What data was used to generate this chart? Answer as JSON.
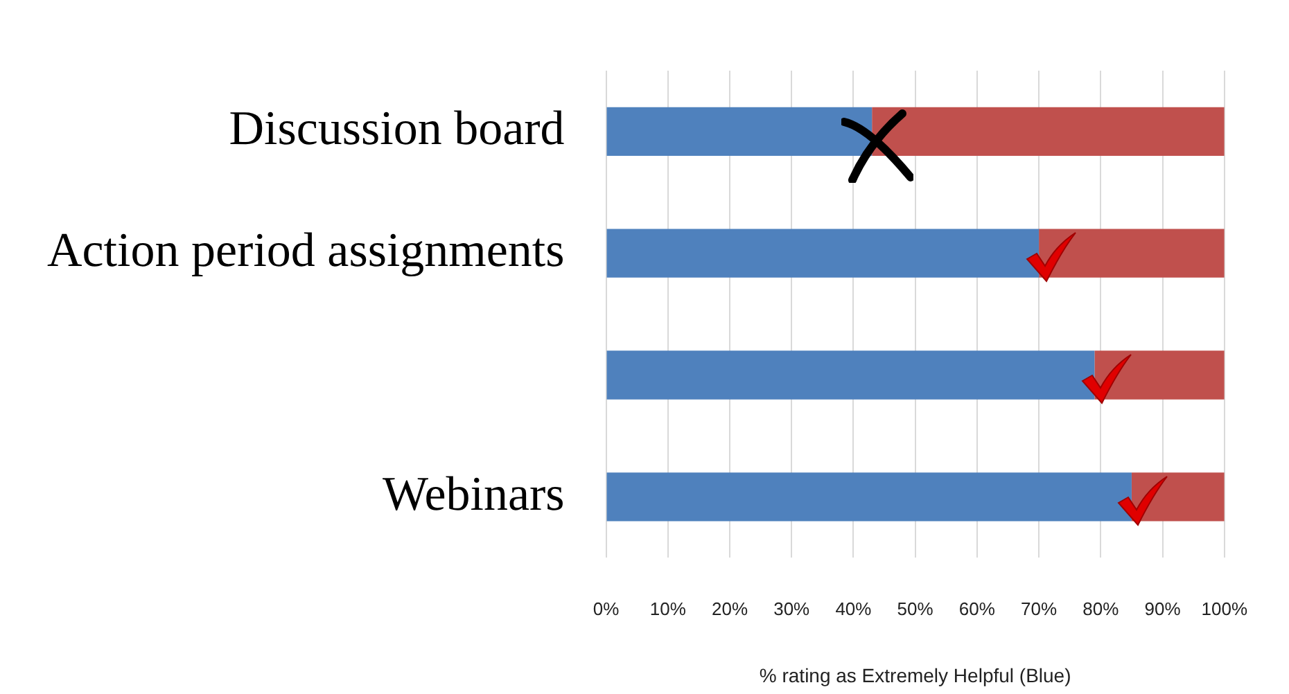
{
  "chart_data": {
    "type": "bar",
    "orientation": "horizontal",
    "stacked": true,
    "xlabel": "% rating as Extremely Helpful (Blue)",
    "categories": [
      "Discussion board",
      "Action period assignments",
      null,
      "Webinars"
    ],
    "series": [
      {
        "color": "#4f81bd",
        "values": [
          43,
          70,
          79,
          85
        ]
      },
      {
        "color": "#c0504d",
        "values": [
          57,
          30,
          21,
          15
        ]
      }
    ],
    "xlim": [
      0,
      100
    ],
    "xticks": [
      {
        "value": 0,
        "label": "0%"
      },
      {
        "value": 10,
        "label": "10%"
      },
      {
        "value": 20,
        "label": "20%"
      },
      {
        "value": 30,
        "label": "30%"
      },
      {
        "value": 40,
        "label": "40%"
      },
      {
        "value": 50,
        "label": "50%"
      },
      {
        "value": 60,
        "label": "60%"
      },
      {
        "value": 70,
        "label": "70%"
      },
      {
        "value": 80,
        "label": "80%"
      },
      {
        "value": 90,
        "label": "90%"
      },
      {
        "value": 100,
        "label": "100%"
      }
    ],
    "grid": "x",
    "legend": false
  }
}
